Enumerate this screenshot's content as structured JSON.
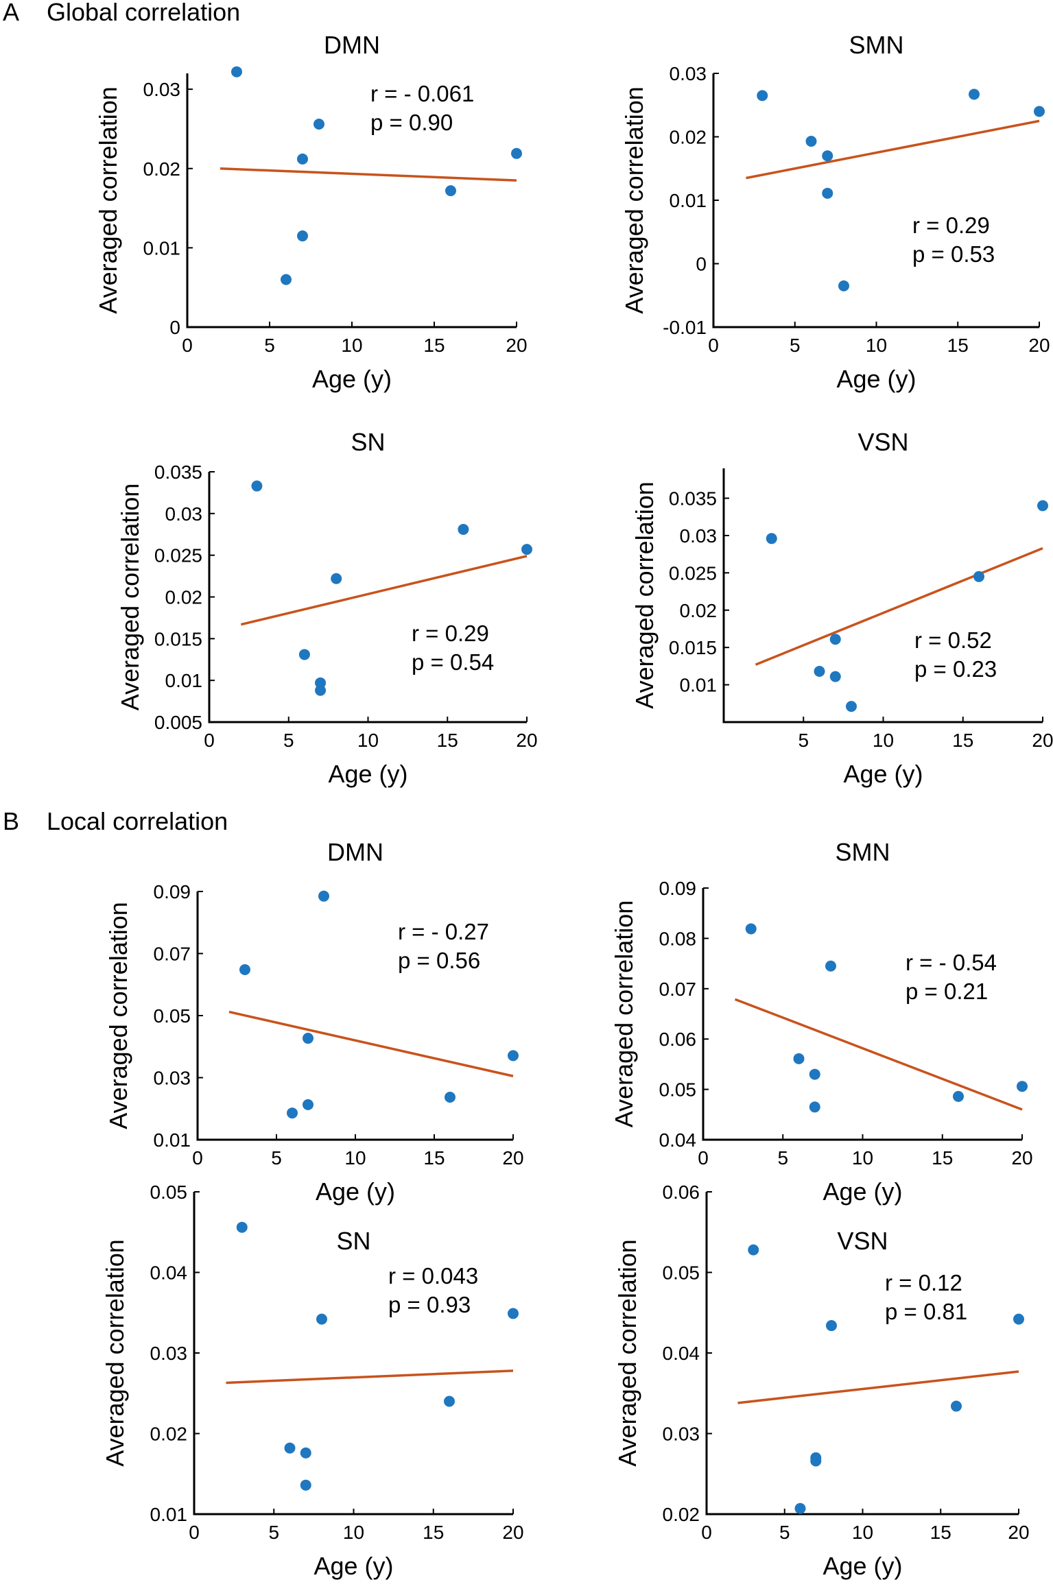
{
  "figure": {
    "section_a": {
      "letter": "A",
      "title": "Global correlation"
    },
    "section_b": {
      "letter": "B",
      "title": "Local correlation"
    }
  },
  "colors": {
    "points": "#1f77c0",
    "fit_line": "#c8531c",
    "axis": "#000000"
  },
  "chart_data": [
    {
      "type": "scatter",
      "section": "A",
      "title": "DMN",
      "xlabel": "Age (y)",
      "ylabel": "Averaged correlation",
      "xlim": [
        0,
        20
      ],
      "ylim": [
        0,
        0.032
      ],
      "xticks": [
        "0",
        "5",
        "10",
        "15",
        "20"
      ],
      "yticks": [
        "0",
        "0.01",
        "0.02",
        "0.03"
      ],
      "x": [
        3,
        6,
        7,
        7,
        8,
        16,
        20
      ],
      "y": [
        0.0322,
        0.006,
        0.0115,
        0.0212,
        0.0256,
        0.0172,
        0.0219
      ],
      "fit": {
        "x": [
          2,
          20
        ],
        "y": [
          0.02,
          0.0185
        ]
      },
      "annotation": [
        "r = - 0.061",
        "p = 0.90"
      ]
    },
    {
      "type": "scatter",
      "section": "A",
      "title": "SMN",
      "xlabel": "Age (y)",
      "ylabel": "Averaged correlation",
      "xlim": [
        0,
        20
      ],
      "ylim": [
        -0.01,
        0.03
      ],
      "xticks": [
        "0",
        "5",
        "10",
        "15",
        "20"
      ],
      "yticks": [
        "-0.01",
        "0",
        "0.01",
        "0.02",
        "0.03"
      ],
      "x": [
        3,
        6,
        7,
        7,
        8,
        16,
        20
      ],
      "y": [
        0.0265,
        0.0193,
        0.017,
        0.0111,
        -0.0035,
        0.0267,
        0.024
      ],
      "fit": {
        "x": [
          2,
          20
        ],
        "y": [
          0.0135,
          0.0225
        ]
      },
      "annotation": [
        "r = 0.29",
        "p = 0.53"
      ]
    },
    {
      "type": "scatter",
      "section": "A",
      "title": "SN",
      "xlabel": "Age (y)",
      "ylabel": "Averaged correlation",
      "xlim": [
        0,
        20
      ],
      "ylim": [
        0.005,
        0.035
      ],
      "xticks": [
        "0",
        "5",
        "10",
        "15",
        "20"
      ],
      "yticks": [
        "0.005",
        "0.01",
        "0.015",
        "0.02",
        "0.025",
        "0.03",
        "0.035"
      ],
      "x": [
        3,
        6,
        7,
        7,
        8,
        16,
        20
      ],
      "y": [
        0.0333,
        0.0131,
        0.0097,
        0.0088,
        0.0222,
        0.0281,
        0.0257
      ],
      "fit": {
        "x": [
          2,
          20
        ],
        "y": [
          0.0167,
          0.0249
        ]
      },
      "annotation": [
        "r = 0.29",
        "p = 0.54"
      ]
    },
    {
      "type": "scatter",
      "section": "A",
      "title": "VSN",
      "xlabel": "Age (y)",
      "ylabel": "Averaged correlation",
      "xlim": [
        0,
        20
      ],
      "ylim": [
        0.005,
        0.039
      ],
      "xticks": [
        "5",
        "10",
        "15",
        "20"
      ],
      "yticks": [
        "0.01",
        "0.015",
        "0.02",
        "0.025",
        "0.03",
        "0.035"
      ],
      "x": [
        3,
        6,
        7,
        7,
        8,
        16,
        20
      ],
      "y": [
        0.0296,
        0.0118,
        0.0161,
        0.0111,
        0.0071,
        0.0245,
        0.034
      ],
      "fit": {
        "x": [
          2,
          20
        ],
        "y": [
          0.0127,
          0.0283
        ]
      },
      "annotation": [
        "r = 0.52",
        "p = 0.23"
      ]
    },
    {
      "type": "scatter",
      "section": "B",
      "title": "DMN",
      "xlabel": "Age (y)",
      "ylabel": "Averaged correlation",
      "xlim": [
        0,
        20
      ],
      "ylim": [
        0.01,
        0.09
      ],
      "xticks": [
        "0",
        "5",
        "10",
        "15",
        "20"
      ],
      "yticks": [
        "0.01",
        "0.03",
        "0.05",
        "0.07",
        "0.09"
      ],
      "x": [
        3,
        6,
        7,
        7,
        8,
        16,
        20
      ],
      "y": [
        0.0648,
        0.0186,
        0.0213,
        0.0427,
        0.0885,
        0.0237,
        0.0371
      ],
      "fit": {
        "x": [
          2,
          20
        ],
        "y": [
          0.0512,
          0.0305
        ]
      },
      "annotation": [
        "r = - 0.27",
        "p = 0.56"
      ]
    },
    {
      "type": "scatter",
      "section": "B",
      "title": "SMN",
      "xlabel": "Age (y)",
      "ylabel": "Averaged correlation",
      "xlim": [
        0,
        20
      ],
      "ylim": [
        0.04,
        0.09
      ],
      "xticks": [
        "0",
        "5",
        "10",
        "15",
        "20"
      ],
      "yticks": [
        "0.04",
        "0.05",
        "0.06",
        "0.07",
        "0.08",
        "0.09"
      ],
      "x": [
        3,
        6,
        7,
        7,
        8,
        16,
        20
      ],
      "y": [
        0.0819,
        0.0561,
        0.053,
        0.0465,
        0.0745,
        0.0486,
        0.0506
      ],
      "fit": {
        "x": [
          2,
          20
        ],
        "y": [
          0.0679,
          0.046
        ]
      },
      "annotation": [
        "r = - 0.54",
        "p = 0.21"
      ]
    },
    {
      "type": "scatter",
      "section": "B",
      "title": "SN",
      "xlabel": "Age (y)",
      "ylabel": "Averaged correlation",
      "xlim": [
        0,
        20
      ],
      "ylim": [
        0.01,
        0.05
      ],
      "xticks": [
        "0",
        "5",
        "10",
        "15",
        "20"
      ],
      "yticks": [
        "0.01",
        "0.02",
        "0.03",
        "0.04",
        "0.05"
      ],
      "x": [
        3,
        6,
        7,
        7,
        8,
        16,
        20
      ],
      "y": [
        0.0456,
        0.0182,
        0.0176,
        0.0136,
        0.0342,
        0.024,
        0.0349
      ],
      "fit": {
        "x": [
          2,
          20
        ],
        "y": [
          0.0263,
          0.0278
        ]
      },
      "annotation": [
        "r = 0.043",
        "p = 0.93"
      ]
    },
    {
      "type": "scatter",
      "section": "B",
      "title": "VSN",
      "xlabel": "Age (y)",
      "ylabel": "Averaged correlation",
      "xlim": [
        0,
        20
      ],
      "ylim": [
        0.02,
        0.06
      ],
      "xticks": [
        "0",
        "5",
        "10",
        "15",
        "20"
      ],
      "yticks": [
        "0.02",
        "0.03",
        "0.04",
        "0.05",
        "0.06"
      ],
      "x": [
        3,
        6,
        7,
        7,
        8,
        16,
        20
      ],
      "y": [
        0.0528,
        0.0207,
        0.027,
        0.0266,
        0.0434,
        0.0334,
        0.0442
      ],
      "fit": {
        "x": [
          2,
          20
        ],
        "y": [
          0.0338,
          0.0377
        ]
      },
      "annotation": [
        "r = 0.12",
        "p = 0.81"
      ]
    }
  ]
}
